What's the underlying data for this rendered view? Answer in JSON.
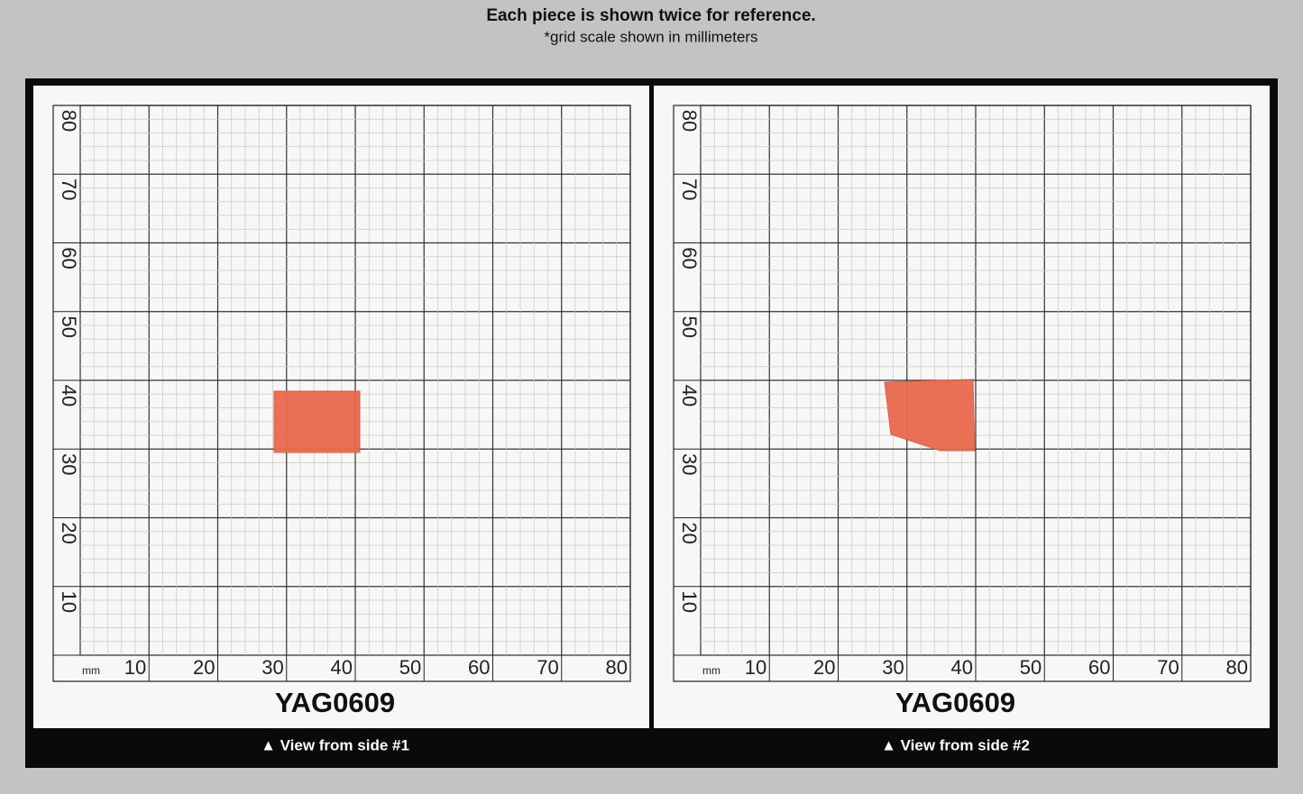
{
  "header": {
    "title": "Each piece is shown twice for reference.",
    "subtitle": "*grid scale shown in millimeters"
  },
  "grid": {
    "unit": "mm",
    "x_labels": [
      10,
      20,
      30,
      40,
      50,
      60,
      70,
      80
    ],
    "y_labels": [
      80,
      70,
      60,
      50,
      40,
      30,
      20,
      10
    ]
  },
  "panels": [
    {
      "label": "YAG0609",
      "caption": "▲ View from side #1"
    },
    {
      "label": "YAG0609",
      "caption": "▲ View from side #2"
    }
  ]
}
